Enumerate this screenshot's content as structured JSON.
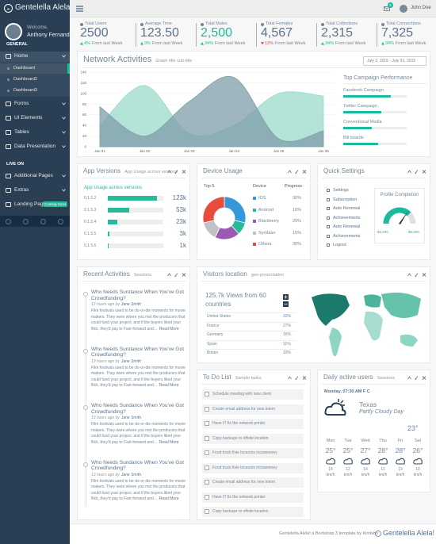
{
  "sidebar": {
    "brand": "Gentelella Alela!",
    "welcome": "Welcome,",
    "user": "Anthony Fernando",
    "section1": "GENERAL",
    "menu": [
      {
        "label": "Home",
        "sub": [
          "Dashboard",
          "Dashboard2",
          "Dashboard3"
        ]
      },
      {
        "label": "Forms"
      },
      {
        "label": "UI Elements"
      },
      {
        "label": "Tables"
      },
      {
        "label": "Data Presentation"
      }
    ],
    "section2": "LIVE ON",
    "menu2": [
      {
        "label": "Additional Pages"
      },
      {
        "label": "Extras"
      },
      {
        "label": "Landing Page",
        "badge": "Coming Soon"
      }
    ]
  },
  "topnav": {
    "badge": "6",
    "user": "John Doe"
  },
  "stats": [
    {
      "label": "Total Users",
      "value": "2500",
      "change": "4%",
      "note": "From last Week"
    },
    {
      "label": "Average Time",
      "value": "123.50",
      "change": "3%",
      "note": "From last Week"
    },
    {
      "label": "Total Males",
      "value": "2,500",
      "change": "34%",
      "note": "From last Week"
    },
    {
      "label": "Total Females",
      "value": "4,567",
      "change": "12%",
      "note": "From last Week"
    },
    {
      "label": "Total Collections",
      "value": "2,315",
      "change": "34%",
      "note": "From last Week"
    },
    {
      "label": "Total Connections",
      "value": "7,325",
      "change": "34%",
      "note": "From last Week"
    }
  ],
  "network": {
    "title": "Network Activities",
    "subtitle": "Graph title sub-title",
    "date_range": "July 2, 2015 - July 31, 2015",
    "chart": {
      "type": "area",
      "x": [
        "Jan 01",
        "Jan 02",
        "Jan 03",
        "Jan 04",
        "Jan 05",
        "Jan 06"
      ],
      "series": [
        {
          "color": "#9ADBC9",
          "values": [
            40,
            115,
            25,
            40,
            100,
            95
          ]
        },
        {
          "color": "#7F9DAA",
          "values": [
            75,
            20,
            85,
            130,
            15,
            30
          ]
        }
      ],
      "ylim": [
        0,
        140
      ],
      "yticks": [
        0,
        20,
        40,
        60,
        80,
        100,
        120,
        140
      ]
    },
    "campaign": {
      "title": "Top Campaign Performance",
      "items": [
        {
          "label": "Facebook Campaign",
          "value": 75
        },
        {
          "label": "Twitter Campaign",
          "value": 60
        },
        {
          "label": "Conventional Media",
          "value": 45
        },
        {
          "label": "Bill boards",
          "value": 55
        }
      ],
      "xlim": [
        0,
        100
      ]
    }
  },
  "app_versions": {
    "title": "App Versions",
    "subtitle": "App Usage across versions",
    "chart": {
      "type": "bar",
      "categories": [
        "0.1.5.2",
        "0.1.5.3",
        "0.1.5.4",
        "0.1.5.5",
        "0.1.5.6"
      ],
      "values": [
        123000,
        53000,
        23000,
        3000,
        1000
      ],
      "value_labels": [
        "123k",
        "53k",
        "23k",
        "3k",
        "1k"
      ],
      "xlim": [
        0,
        140000
      ],
      "color": "#26B99A"
    }
  },
  "device": {
    "title": "Device Usage",
    "top": "Top 5",
    "col_device": "Device",
    "col_progress": "Progress",
    "chart": {
      "type": "pie",
      "categories": [
        "IOS",
        "Android",
        "Blackberry",
        "Symbian",
        "Others"
      ],
      "values": [
        30,
        10,
        20,
        15,
        30
      ],
      "value_labels": [
        "30%",
        "10%",
        "20%",
        "15%",
        "30%"
      ],
      "colors": [
        "#3498DB",
        "#26B99A",
        "#9B59B6",
        "#BDC3C7",
        "#E74C3C"
      ]
    }
  },
  "quick": {
    "title": "Quick Settings",
    "items": [
      "Settings",
      "Subscription",
      "Auto Renewal",
      "Achievements",
      "Auto Renewal",
      "Achievements",
      "Logout"
    ],
    "gauge": {
      "title": "Profile Completion",
      "min_label": "$3,200",
      "max_label": "$5,000"
    }
  },
  "recent": {
    "title": "Recent Activities",
    "subtitle": "Sessions",
    "items": [
      {
        "title": "Who Needs Sundance When You've Got Crowdfunding?",
        "meta": "13 hours ago by",
        "author": "Jane Smith",
        "text": "Film festivals used to be do-or-die moments for movie makers. They were where you met the producers that could fund your project, and if the buyers liked your flick, they'd pay to Fast-forward and…",
        "link": "Read More"
      },
      {
        "title": "Who Needs Sundance When You've Got Crowdfunding?",
        "meta": "13 hours ago by",
        "author": "Jane Smith",
        "text": "Film festivals used to be do-or-die moments for movie makers. They were where you met the producers that could fund your project, and if the buyers liked your flick, they'd pay to Fast-forward and…",
        "link": "Read More"
      },
      {
        "title": "Who Needs Sundance When You've Got Crowdfunding?",
        "meta": "13 hours ago by",
        "author": "Jane Smith",
        "text": "Film festivals used to be do-or-die moments for movie makers. They were where you met the producers that could fund your project, and if the buyers liked your flick, they'd pay to Fast-forward and…",
        "link": "Read More"
      },
      {
        "title": "Who Needs Sundance When You've Got Crowdfunding?",
        "meta": "13 hours ago by",
        "author": "Jane Smith",
        "text": "Film festivals used to be do-or-die moments for movie makers. They were where you met the producers that could fund your project, and if the buyers liked your flick, they'd pay to Fast-forward and…",
        "link": "Read More"
      }
    ]
  },
  "visitors": {
    "title": "Visitors location",
    "subtitle": "geo-presentation",
    "headline": "125.7k Views from 60 countries",
    "rows": [
      [
        "United States",
        "33%"
      ],
      [
        "France",
        "27%"
      ],
      [
        "Germany",
        "16%"
      ],
      [
        "Spain",
        "11%"
      ],
      [
        "Britain",
        "10%"
      ]
    ]
  },
  "todo": {
    "title": "To Do List",
    "subtitle": "Sample tasks",
    "items": [
      "Schedule meeting with new client",
      "Create email address for new intern",
      "Have IT fix the network printer",
      "Copy backups to offsite location",
      "Food truck fixie locavors mcsweeney",
      "Food truck fixie locavors mcsweeney",
      "Create email address for new intern",
      "Have IT fix the network printer",
      "Copy backups to offsite location"
    ]
  },
  "weather": {
    "title": "Daily active users",
    "subtitle": "Sessions",
    "date": "Monday, 07:30 AM F C",
    "temp": "23°",
    "city": "Texas",
    "condition": "Partly Cloudy Day",
    "days": [
      {
        "day": "Mon",
        "temp": "25°",
        "wind": "15 km/h"
      },
      {
        "day": "Tue",
        "temp": "25°",
        "wind": "12 km/h"
      },
      {
        "day": "Wed",
        "temp": "27°",
        "wind": "14 km/h"
      },
      {
        "day": "Thu",
        "temp": "28°",
        "wind": "11 km/h"
      },
      {
        "day": "Fri",
        "temp": "28°",
        "wind": "19 km/h"
      },
      {
        "day": "Sat",
        "temp": "26°",
        "wind": "10 km/h"
      }
    ]
  },
  "footer": {
    "text": "Gentelella Alela! a Bootstrap 3 template by Kimlabs",
    "brand": "Gentelella Alela!"
  }
}
